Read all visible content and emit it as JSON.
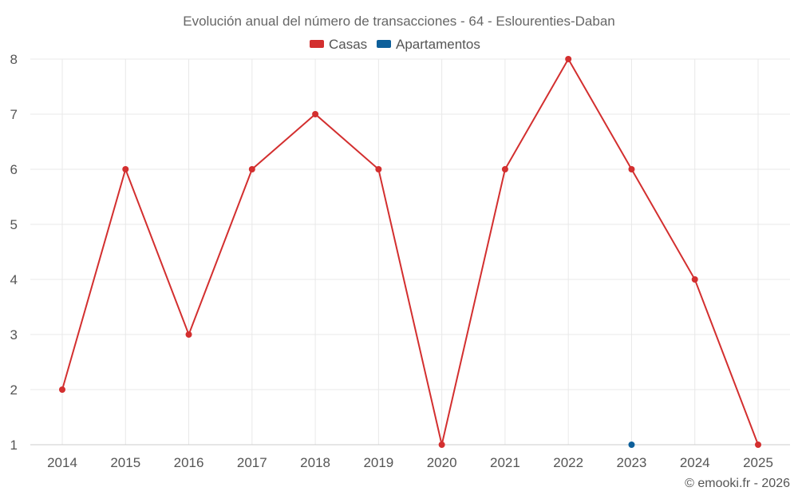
{
  "chart_data": {
    "type": "line",
    "title": "Evolución anual del número de transacciones - 64 - Eslourenties-Daban",
    "categories": [
      "2014",
      "2015",
      "2016",
      "2017",
      "2018",
      "2019",
      "2020",
      "2021",
      "2022",
      "2023",
      "2024",
      "2025"
    ],
    "series": [
      {
        "name": "Casas",
        "color": "#d32f2f",
        "values": [
          2,
          6,
          3,
          6,
          7,
          6,
          1,
          6,
          8,
          6,
          4,
          1
        ]
      },
      {
        "name": "Apartamentos",
        "color": "#0d5f9a",
        "values": [
          null,
          null,
          null,
          null,
          null,
          null,
          null,
          null,
          null,
          1,
          null,
          null
        ]
      }
    ],
    "yticks": [
      "1",
      "2",
      "3",
      "4",
      "5",
      "6",
      "7",
      "8"
    ],
    "ylim": [
      1,
      8
    ],
    "xlabel": "",
    "ylabel": "",
    "grid": true,
    "legend": "top-center"
  },
  "credit": "© emooki.fr - 2026"
}
